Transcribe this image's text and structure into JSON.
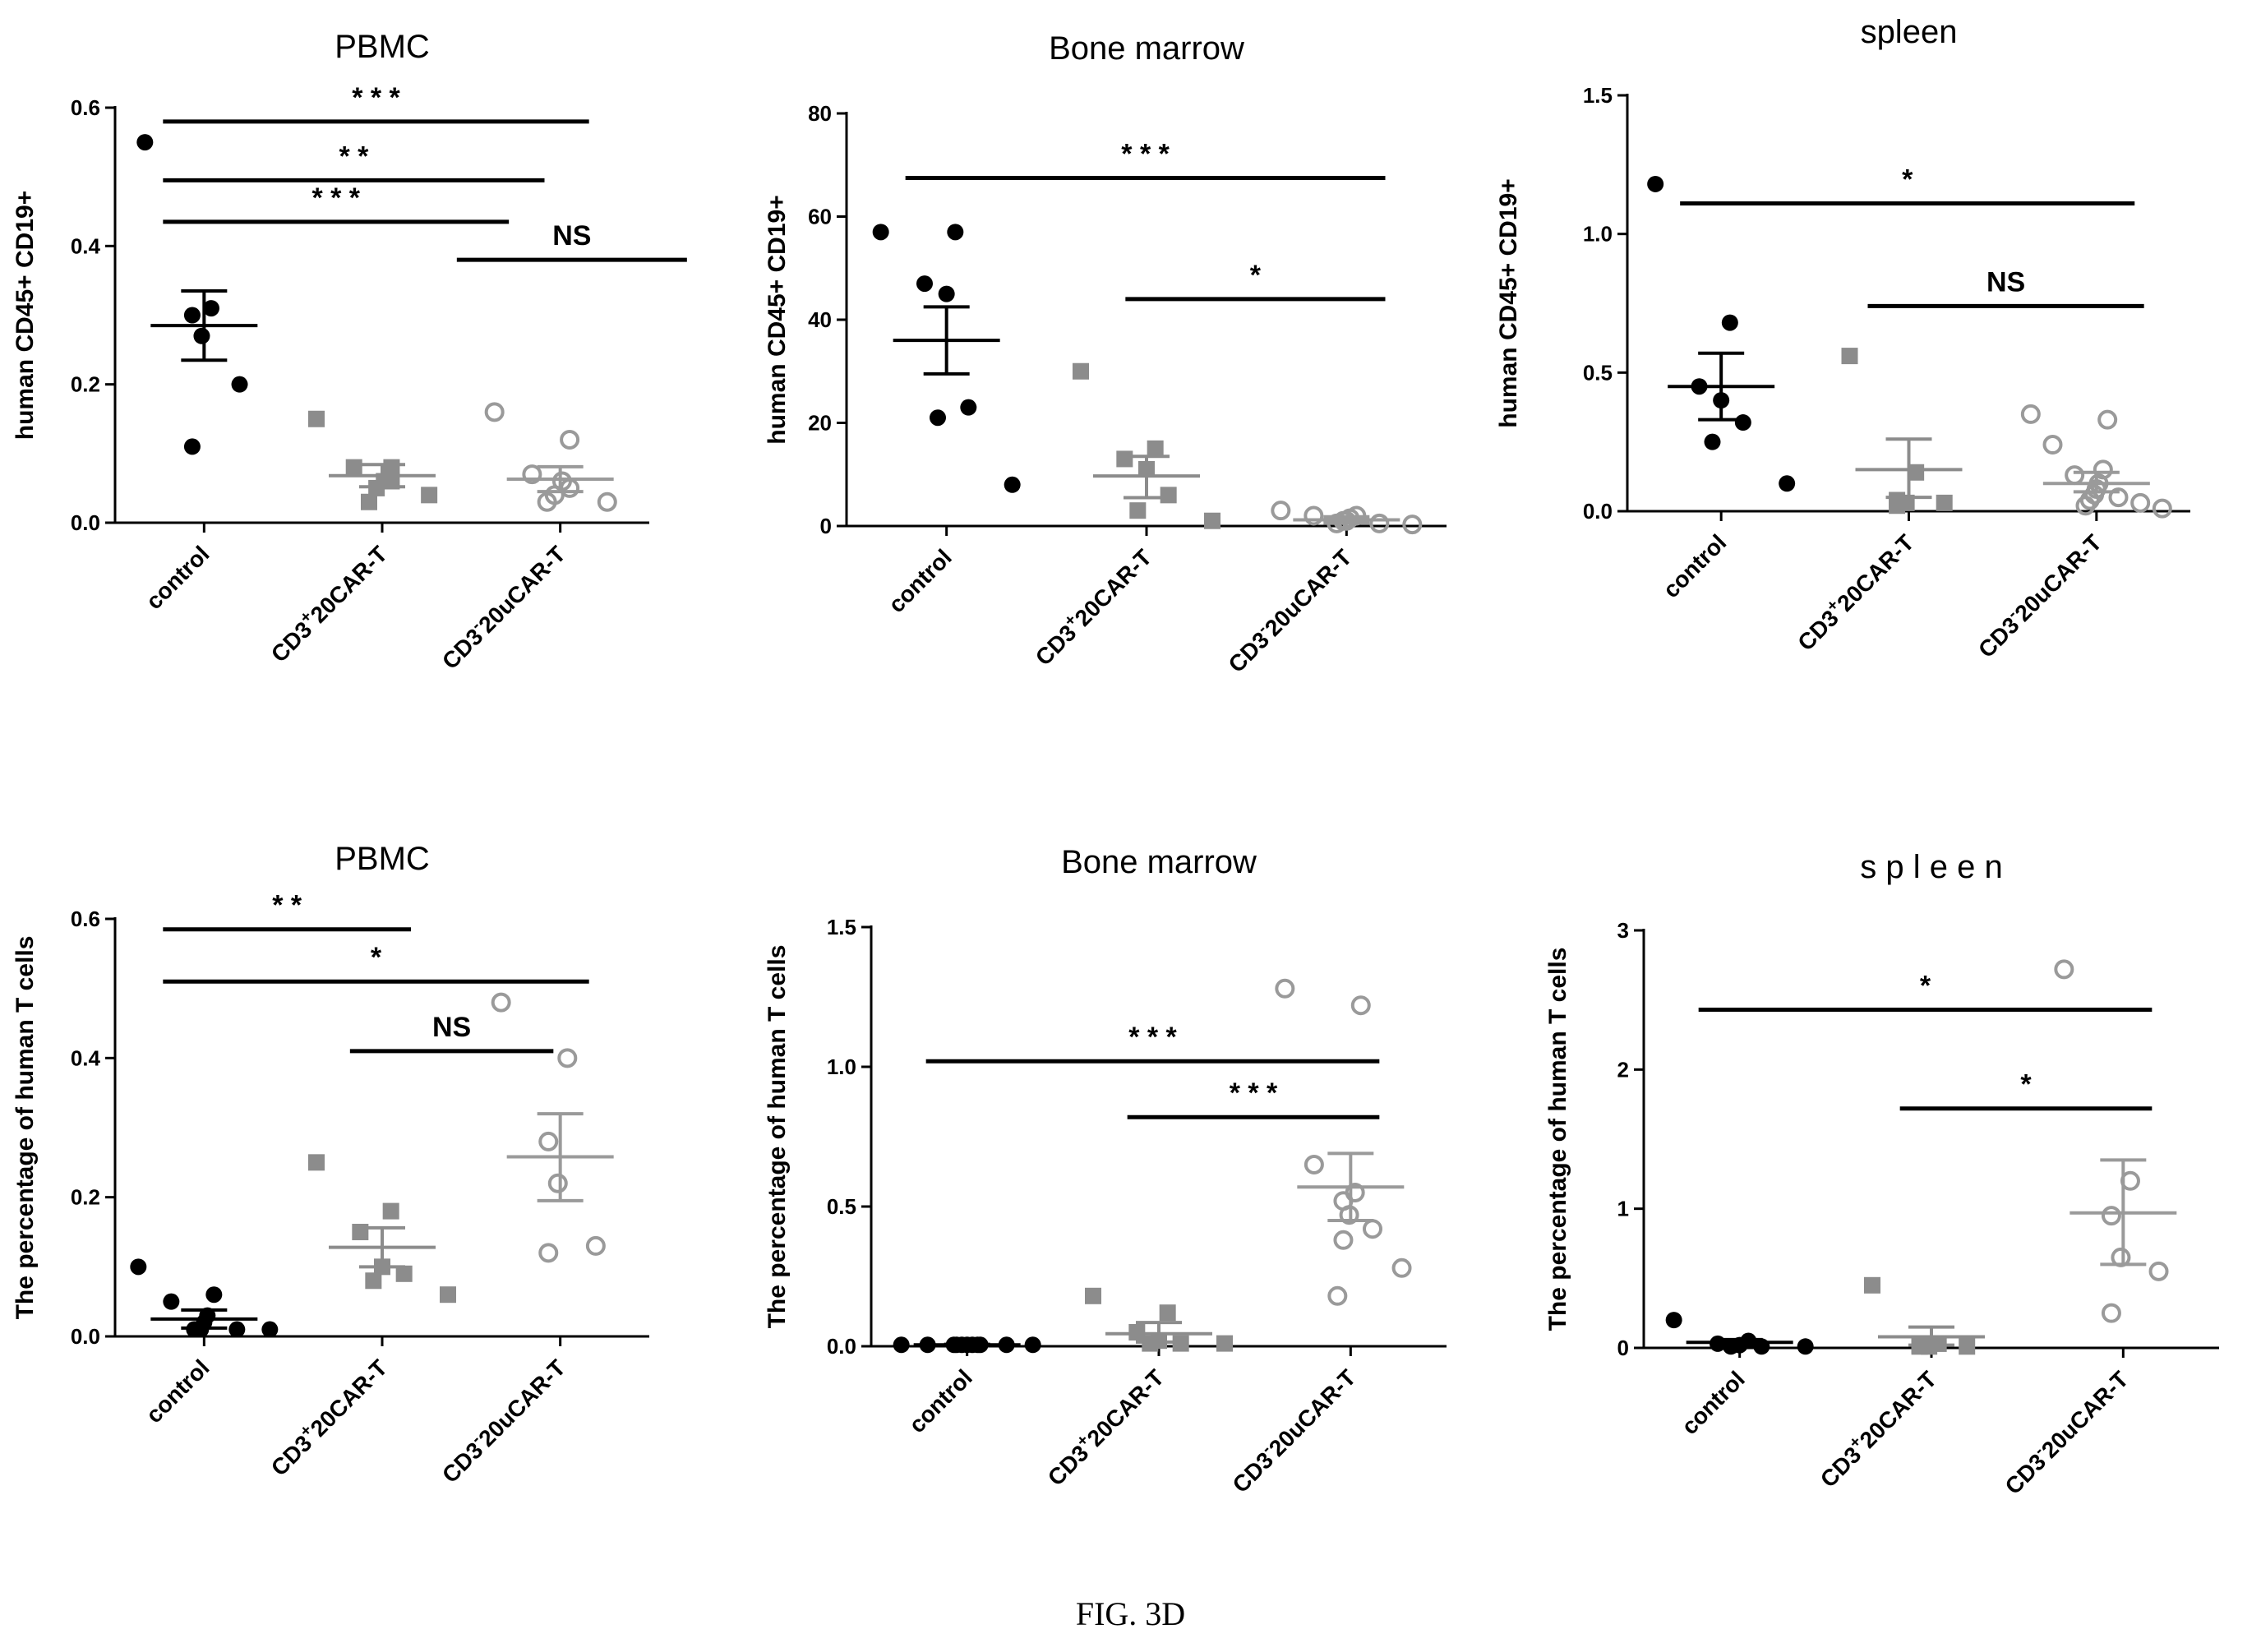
{
  "figure_caption": "FIG. 3D",
  "colors": {
    "control": "#000000",
    "plus": "#8c8c8c",
    "minus": "#9a9a9a",
    "axis": "#000000"
  },
  "chart_data": [
    {
      "type": "scatter",
      "title": "PBMC",
      "ylabel": "human CD45+ CD19+",
      "ylim": [
        0,
        0.6
      ],
      "yticks": [
        "0.0",
        "0.2",
        "0.4",
        "0.6"
      ],
      "categories": [
        "control",
        "CD3+20CAR-T",
        "CD3-20uCAR-T"
      ],
      "category_labels": [
        {
          "base": "control",
          "sup": "",
          "rest": ""
        },
        {
          "base": "CD3",
          "sup": "+",
          "rest": "20CAR-T"
        },
        {
          "base": "CD3",
          "sup": "-",
          "rest": "20uCAR-T"
        }
      ],
      "series": [
        {
          "name": "control",
          "marker": "filled-circle",
          "values": [
            0.55,
            0.31,
            0.3,
            0.27,
            0.2,
            0.11
          ],
          "mean": 0.285,
          "sem": [
            0.235,
            0.335
          ]
        },
        {
          "name": "CD3+20CAR-T",
          "marker": "filled-square",
          "values": [
            0.15,
            0.08,
            0.08,
            0.06,
            0.06,
            0.05,
            0.04,
            0.03
          ],
          "mean": 0.068,
          "sem": [
            0.052,
            0.084
          ]
        },
        {
          "name": "CD3-20uCAR-T",
          "marker": "open-circle",
          "values": [
            0.16,
            0.12,
            0.07,
            0.06,
            0.05,
            0.04,
            0.03,
            0.03
          ],
          "mean": 0.063,
          "sem": [
            0.045,
            0.081
          ]
        }
      ],
      "significance": [
        {
          "from": 0,
          "to": 2,
          "y": 0.58,
          "label": "* * *"
        },
        {
          "from": 0,
          "to": 1.75,
          "y": 0.495,
          "label": "* *"
        },
        {
          "from": 0,
          "to": 1.55,
          "y": 0.435,
          "label": "* * *"
        },
        {
          "from": 1.65,
          "to": 2.55,
          "y": 0.38,
          "label": "NS"
        }
      ]
    },
    {
      "type": "scatter",
      "title": "Bone marrow",
      "ylabel": "human CD45+ CD19+",
      "ylim": [
        0,
        80
      ],
      "yticks": [
        "0",
        "20",
        "40",
        "60",
        "80"
      ],
      "categories": [
        "control",
        "CD3+20CAR-T",
        "CD3-20uCAR-T"
      ],
      "category_labels": [
        {
          "base": "control",
          "sup": "",
          "rest": ""
        },
        {
          "base": "CD3",
          "sup": "+",
          "rest": "20CAR-T"
        },
        {
          "base": "CD3",
          "sup": "-",
          "rest": "20uCAR-T"
        }
      ],
      "series": [
        {
          "name": "control",
          "marker": "filled-circle",
          "values": [
            57,
            57,
            47,
            45,
            23,
            21,
            8
          ],
          "mean": 36,
          "sem": [
            29.5,
            42.5
          ]
        },
        {
          "name": "CD3+20CAR-T",
          "marker": "filled-square",
          "values": [
            30,
            15,
            13,
            11,
            6,
            3,
            1
          ],
          "mean": 9.7,
          "sem": [
            5.5,
            13.5
          ]
        },
        {
          "name": "CD3-20uCAR-T",
          "marker": "open-circle",
          "values": [
            3,
            2,
            2,
            1.5,
            1,
            1,
            0.5,
            0.5,
            0.3
          ],
          "mean": 1.2,
          "sem": [
            0.6,
            1.8
          ]
        }
      ],
      "significance": [
        {
          "from": 0,
          "to": 2.05,
          "y": 67.5,
          "label": "* * *"
        },
        {
          "from": 1.1,
          "to": 2.05,
          "y": 44,
          "label": "*"
        }
      ]
    },
    {
      "type": "scatter",
      "title": "spleen",
      "ylabel": "human CD45+ CD19+",
      "ylim": [
        0,
        1.5
      ],
      "yticks": [
        "0.0",
        "0.5",
        "1.0",
        "1.5"
      ],
      "categories": [
        "control",
        "CD3+20CAR-T",
        "CD3-20uCAR-T"
      ],
      "category_labels": [
        {
          "base": "control",
          "sup": "",
          "rest": ""
        },
        {
          "base": "CD3",
          "sup": "+",
          "rest": "20CAR-T"
        },
        {
          "base": "CD3",
          "sup": "-",
          "rest": "20uCAR-T"
        }
      ],
      "series": [
        {
          "name": "control",
          "marker": "filled-circle",
          "values": [
            1.18,
            0.68,
            0.45,
            0.4,
            0.32,
            0.25,
            0.1
          ],
          "mean": 0.45,
          "sem": [
            0.33,
            0.57
          ]
        },
        {
          "name": "CD3+20CAR-T",
          "marker": "filled-square",
          "values": [
            0.56,
            0.14,
            0.04,
            0.03,
            0.03,
            0.02
          ],
          "mean": 0.15,
          "sem": [
            0.05,
            0.26
          ]
        },
        {
          "name": "CD3-20uCAR-T",
          "marker": "open-circle",
          "values": [
            0.35,
            0.33,
            0.24,
            0.15,
            0.13,
            0.1,
            0.08,
            0.06,
            0.05,
            0.04,
            0.03,
            0.02,
            0.01
          ],
          "mean": 0.1,
          "sem": [
            0.07,
            0.14
          ]
        }
      ],
      "significance": [
        {
          "from": 0,
          "to": 2.05,
          "y": 1.11,
          "label": "*"
        },
        {
          "from": 1.0,
          "to": 2.1,
          "y": 0.74,
          "label": "NS"
        }
      ]
    },
    {
      "type": "scatter",
      "title": "PBMC",
      "ylabel": "The percentage of human T cells",
      "ylim": [
        0,
        0.6
      ],
      "yticks": [
        "0.0",
        "0.2",
        "0.4",
        "0.6"
      ],
      "categories": [
        "control",
        "CD3+20CAR-T",
        "CD3-20uCAR-T"
      ],
      "category_labels": [
        {
          "base": "control",
          "sup": "",
          "rest": ""
        },
        {
          "base": "CD3",
          "sup": "+",
          "rest": "20CAR-T"
        },
        {
          "base": "CD3",
          "sup": "-",
          "rest": "20uCAR-T"
        }
      ],
      "series": [
        {
          "name": "control",
          "marker": "filled-circle",
          "values": [
            0.1,
            0.06,
            0.05,
            0.03,
            0.02,
            0.01,
            0.01,
            0.01,
            0.01
          ],
          "mean": 0.025,
          "sem": [
            0.012,
            0.038
          ]
        },
        {
          "name": "CD3+20CAR-T",
          "marker": "filled-square",
          "values": [
            0.25,
            0.18,
            0.15,
            0.1,
            0.09,
            0.08,
            0.06
          ],
          "mean": 0.128,
          "sem": [
            0.1,
            0.156
          ]
        },
        {
          "name": "CD3-20uCAR-T",
          "marker": "open-circle",
          "values": [
            0.48,
            0.4,
            0.28,
            0.22,
            0.13,
            0.12
          ],
          "mean": 0.258,
          "sem": [
            0.195,
            0.32
          ]
        }
      ],
      "significance": [
        {
          "from": 0,
          "to": 1.0,
          "y": 0.585,
          "label": "* *"
        },
        {
          "from": 0,
          "to": 2.0,
          "y": 0.51,
          "label": "*"
        },
        {
          "from": 1.05,
          "to": 1.8,
          "y": 0.41,
          "label": "NS"
        }
      ]
    },
    {
      "type": "scatter",
      "title": "Bone marrow",
      "ylabel": "The percentage of human T cells",
      "ylim": [
        0,
        1.5
      ],
      "yticks": [
        "0.0",
        "0.5",
        "1.0",
        "1.5"
      ],
      "categories": [
        "control",
        "CD3+20CAR-T",
        "CD3-20uCAR-T"
      ],
      "category_labels": [
        {
          "base": "control",
          "sup": "",
          "rest": ""
        },
        {
          "base": "CD3",
          "sup": "+",
          "rest": "20CAR-T"
        },
        {
          "base": "CD3",
          "sup": "-",
          "rest": "20uCAR-T"
        }
      ],
      "series": [
        {
          "name": "control",
          "marker": "filled-circle",
          "values": [
            0.005,
            0.005,
            0.005,
            0.005,
            0.005,
            0.005,
            0.005,
            0.005,
            0.005,
            0.005,
            0.005
          ],
          "mean": 0.005,
          "sem": [
            0.003,
            0.007
          ]
        },
        {
          "name": "CD3+20CAR-T",
          "marker": "filled-square",
          "values": [
            0.18,
            0.12,
            0.05,
            0.02,
            0.01,
            0.01,
            0.01
          ],
          "mean": 0.045,
          "sem": [
            0.015,
            0.085
          ]
        },
        {
          "name": "CD3-20uCAR-T",
          "marker": "open-circle",
          "values": [
            1.28,
            1.22,
            0.65,
            0.55,
            0.52,
            0.47,
            0.42,
            0.38,
            0.28,
            0.18
          ],
          "mean": 0.57,
          "sem": [
            0.45,
            0.69
          ]
        }
      ],
      "significance": [
        {
          "from": 0,
          "to": 2.0,
          "y": 1.02,
          "label": "* * *"
        },
        {
          "from": 1.05,
          "to": 2.0,
          "y": 0.82,
          "label": "* * *"
        }
      ]
    },
    {
      "type": "scatter",
      "title": "s p l e e n",
      "ylabel": "The percentage of human T cells",
      "ylim": [
        0,
        3
      ],
      "yticks": [
        "0",
        "1",
        "2",
        "3"
      ],
      "categories": [
        "control",
        "CD3+20CAR-T",
        "CD3-20uCAR-T"
      ],
      "category_labels": [
        {
          "base": "control",
          "sup": "",
          "rest": ""
        },
        {
          "base": "CD3",
          "sup": "+",
          "rest": "20CAR-T"
        },
        {
          "base": "CD3",
          "sup": "-",
          "rest": "20uCAR-T"
        }
      ],
      "series": [
        {
          "name": "control",
          "marker": "filled-circle",
          "values": [
            0.2,
            0.05,
            0.03,
            0.02,
            0.01,
            0.01,
            0.01
          ],
          "mean": 0.04,
          "sem": [
            0.02,
            0.06
          ]
        },
        {
          "name": "CD3+20CAR-T",
          "marker": "filled-square",
          "values": [
            0.45,
            0.03,
            0.02,
            0.01,
            0.01,
            0.01
          ],
          "mean": 0.08,
          "sem": [
            0.02,
            0.15
          ]
        },
        {
          "name": "CD3-20uCAR-T",
          "marker": "open-circle",
          "values": [
            2.72,
            1.2,
            0.95,
            0.65,
            0.55,
            0.25
          ],
          "mean": 0.97,
          "sem": [
            0.6,
            1.35
          ]
        }
      ],
      "significance": [
        {
          "from": 0,
          "to": 2.0,
          "y": 2.43,
          "label": "*"
        },
        {
          "from": 1.05,
          "to": 2.0,
          "y": 1.72,
          "label": "*"
        }
      ]
    }
  ]
}
